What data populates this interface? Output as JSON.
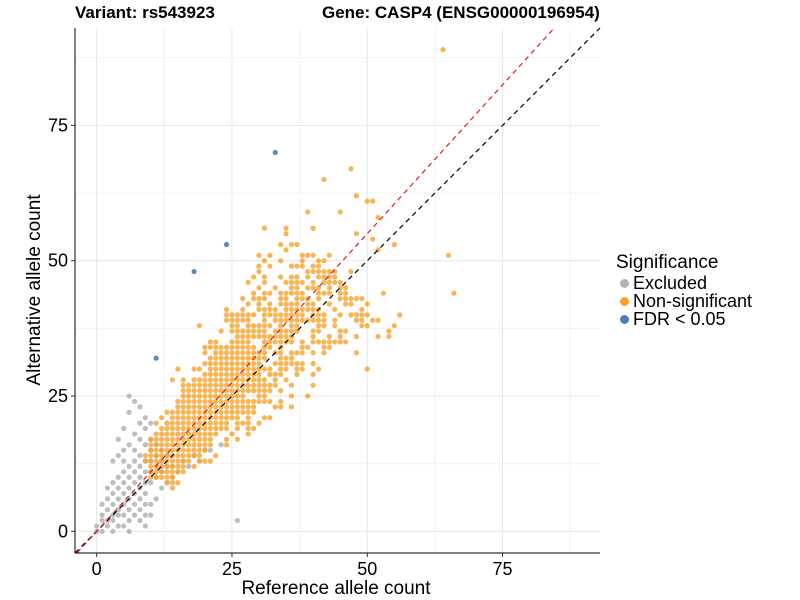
{
  "header": {
    "variant": "Variant: rs543923",
    "gene": "Gene: CASP4 (ENSG00000196954)"
  },
  "legend": {
    "title": "Significance",
    "items": [
      {
        "label": "Excluded",
        "color": "#b3b3b3"
      },
      {
        "label": "Non-significant",
        "color": "#f7a128"
      },
      {
        "label": "FDR < 0.05",
        "color": "#4e7eb3"
      }
    ]
  },
  "chart_data": {
    "type": "scatter",
    "title": "",
    "xlabel": "Reference allele count",
    "ylabel": "Alternative allele count",
    "xlim": [
      -4,
      93
    ],
    "ylim": [
      -4,
      93
    ],
    "xticks": [
      0,
      25,
      50,
      75
    ],
    "yticks": [
      0,
      25,
      50,
      75
    ],
    "grid": true,
    "legend_position": "right",
    "reference_lines": [
      {
        "name": "identity",
        "slope": 1,
        "intercept": 0,
        "color": "#000000",
        "style": "dashed"
      },
      {
        "name": "fit",
        "slope": 1.1,
        "intercept": 0,
        "color": "#e41a1c",
        "style": "dashed"
      }
    ],
    "series": [
      {
        "name": "Excluded",
        "color": "#b3b3b3",
        "points": [
          [
            0,
            0
          ],
          [
            0,
            1
          ],
          [
            1,
            0
          ],
          [
            1,
            2
          ],
          [
            1,
            3
          ],
          [
            1,
            5
          ],
          [
            2,
            1
          ],
          [
            2,
            2
          ],
          [
            2,
            4
          ],
          [
            2,
            6
          ],
          [
            2,
            8
          ],
          [
            3,
            2
          ],
          [
            3,
            3
          ],
          [
            3,
            5
          ],
          [
            3,
            7
          ],
          [
            3,
            9
          ],
          [
            3,
            13
          ],
          [
            4,
            1
          ],
          [
            4,
            4
          ],
          [
            4,
            6
          ],
          [
            4,
            8
          ],
          [
            4,
            10
          ],
          [
            4,
            14
          ],
          [
            4,
            17
          ],
          [
            5,
            3
          ],
          [
            5,
            5
          ],
          [
            5,
            7
          ],
          [
            5,
            9
          ],
          [
            5,
            11
          ],
          [
            5,
            13
          ],
          [
            5,
            15
          ],
          [
            5,
            19
          ],
          [
            6,
            2
          ],
          [
            6,
            4
          ],
          [
            6,
            6
          ],
          [
            6,
            8
          ],
          [
            6,
            10
          ],
          [
            6,
            12
          ],
          [
            6,
            16
          ],
          [
            6,
            22
          ],
          [
            6,
            25
          ],
          [
            7,
            3
          ],
          [
            7,
            5
          ],
          [
            7,
            7
          ],
          [
            7,
            9
          ],
          [
            7,
            11
          ],
          [
            7,
            13
          ],
          [
            7,
            15
          ],
          [
            7,
            18
          ],
          [
            7,
            24
          ],
          [
            8,
            2
          ],
          [
            8,
            4
          ],
          [
            8,
            6
          ],
          [
            8,
            8
          ],
          [
            8,
            10
          ],
          [
            8,
            12
          ],
          [
            8,
            14
          ],
          [
            8,
            17
          ],
          [
            8,
            20
          ],
          [
            8,
            23
          ],
          [
            9,
            3
          ],
          [
            9,
            5
          ],
          [
            9,
            7
          ],
          [
            9,
            9
          ],
          [
            9,
            11
          ],
          [
            9,
            13
          ],
          [
            9,
            16
          ],
          [
            9,
            19
          ],
          [
            9,
            21
          ],
          [
            10,
            5
          ],
          [
            10,
            9
          ],
          [
            10,
            11
          ],
          [
            10,
            13
          ],
          [
            10,
            15
          ],
          [
            10,
            17
          ],
          [
            10,
            20
          ],
          [
            11,
            6
          ],
          [
            11,
            10
          ],
          [
            11,
            12
          ],
          [
            11,
            14
          ],
          [
            11,
            16
          ],
          [
            12,
            8
          ],
          [
            12,
            11
          ],
          [
            12,
            13
          ],
          [
            12,
            15
          ],
          [
            13,
            9
          ],
          [
            13,
            12
          ],
          [
            13,
            14
          ],
          [
            14,
            10
          ],
          [
            14,
            12
          ],
          [
            15,
            11
          ],
          [
            16,
            13
          ],
          [
            17,
            12
          ],
          [
            18,
            14
          ],
          [
            19,
            13
          ],
          [
            20,
            15
          ],
          [
            21,
            15
          ],
          [
            23,
            16
          ],
          [
            26,
            2
          ],
          [
            5,
            1
          ],
          [
            3,
            0
          ],
          [
            4,
            3
          ],
          [
            6,
            0
          ],
          [
            9,
            1
          ],
          [
            10,
            3
          ]
        ]
      },
      {
        "name": "Non-significant",
        "color": "#f7a128"
      },
      {
        "name": "FDR < 0.05",
        "color": "#4e7eb3",
        "points": [
          [
            11,
            32
          ],
          [
            18,
            48
          ],
          [
            24,
            53
          ],
          [
            33,
            70
          ]
        ]
      }
    ],
    "nonsig_outliers": [
      [
        64,
        89
      ],
      [
        47,
        67
      ],
      [
        42,
        65
      ],
      [
        48,
        62
      ],
      [
        50,
        61
      ],
      [
        51,
        61
      ],
      [
        45,
        59
      ],
      [
        39,
        59
      ],
      [
        52,
        58
      ],
      [
        40,
        56
      ],
      [
        48,
        55
      ],
      [
        51,
        54
      ],
      [
        55,
        53
      ],
      [
        43,
        51
      ],
      [
        65,
        51
      ],
      [
        52,
        52
      ],
      [
        66,
        44
      ],
      [
        55,
        38
      ],
      [
        52,
        39
      ],
      [
        56,
        40
      ],
      [
        47,
        48
      ],
      [
        46,
        42
      ],
      [
        44,
        41
      ],
      [
        49,
        40
      ],
      [
        48,
        36
      ],
      [
        53,
        44
      ]
    ]
  }
}
